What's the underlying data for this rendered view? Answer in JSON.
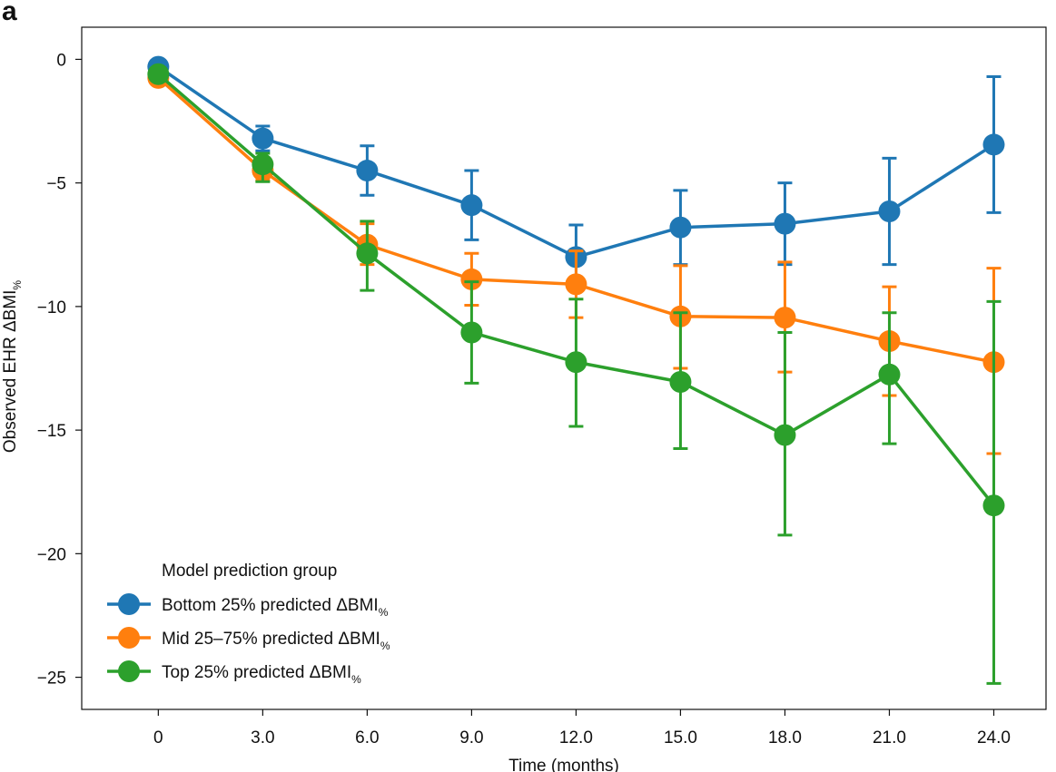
{
  "panel_label": "a",
  "chart_data": {
    "type": "line",
    "title": "",
    "xlabel": "Time (months)",
    "ylabel_main": "Observed EHR ΔBMI",
    "ylabel_sub": "%",
    "x": [
      0,
      3,
      6,
      9,
      12,
      15,
      18,
      21,
      24
    ],
    "x_tick_labels": [
      "0",
      "3.0",
      "6.0",
      "9.0",
      "12.0",
      "15.0",
      "18.0",
      "21.0",
      "24.0"
    ],
    "y_ticks": [
      0,
      -5,
      -10,
      -15,
      -20,
      -25
    ],
    "y_tick_labels": [
      "0",
      "-5",
      "-10",
      "-15",
      "-20",
      "-25"
    ],
    "xlim": [
      -2.2,
      25.5
    ],
    "ylim": [
      -26.3,
      1.3
    ],
    "grid": false,
    "legend_title": "Model prediction group",
    "legend_position": "bottom-left",
    "series": [
      {
        "name": "Bottom 25% predicted ΔBMI",
        "name_main": "Bottom 25% predicted ΔBMI",
        "name_sub": "%",
        "color": "#1f77b4",
        "values": [
          -0.3,
          -3.2,
          -4.5,
          -5.9,
          -8.0,
          -6.8,
          -6.65,
          -6.15,
          -3.45
        ],
        "err_low": [
          -0.3,
          -3.7,
          -5.5,
          -7.3,
          -9.3,
          -8.3,
          -8.3,
          -8.3,
          -6.2
        ],
        "err_high": [
          -0.3,
          -2.7,
          -3.5,
          -4.5,
          -6.7,
          -5.3,
          -5.0,
          -4.0,
          -0.7
        ]
      },
      {
        "name": "Mid 25–75% predicted ΔBMI",
        "name_main": "Mid 25–75% predicted ΔBMI",
        "name_sub": "%",
        "color": "#ff7f0e",
        "values": [
          -0.75,
          -4.5,
          -7.5,
          -8.9,
          -9.1,
          -10.4,
          -10.45,
          -11.4,
          -12.25
        ],
        "err_low": [
          -0.75,
          -4.9,
          -8.3,
          -9.95,
          -10.45,
          -12.5,
          -12.65,
          -13.6,
          -15.95
        ],
        "err_high": [
          -0.75,
          -4.1,
          -6.65,
          -7.85,
          -7.75,
          -8.35,
          -8.2,
          -9.2,
          -8.45
        ]
      },
      {
        "name": "Top 25% predicted ΔBMI",
        "name_main": "Top 25% predicted ΔBMI",
        "name_sub": "%",
        "color": "#2ca02c",
        "values": [
          -0.6,
          -4.25,
          -7.85,
          -11.05,
          -12.25,
          -13.05,
          -15.2,
          -12.75,
          -18.05
        ],
        "err_low": [
          -0.6,
          -4.95,
          -9.35,
          -13.1,
          -14.85,
          -15.75,
          -19.25,
          -15.55,
          -25.25
        ],
        "err_high": [
          -0.6,
          -3.8,
          -6.55,
          -9.0,
          -9.7,
          -10.25,
          -11.05,
          -10.25,
          -9.8
        ]
      }
    ]
  }
}
